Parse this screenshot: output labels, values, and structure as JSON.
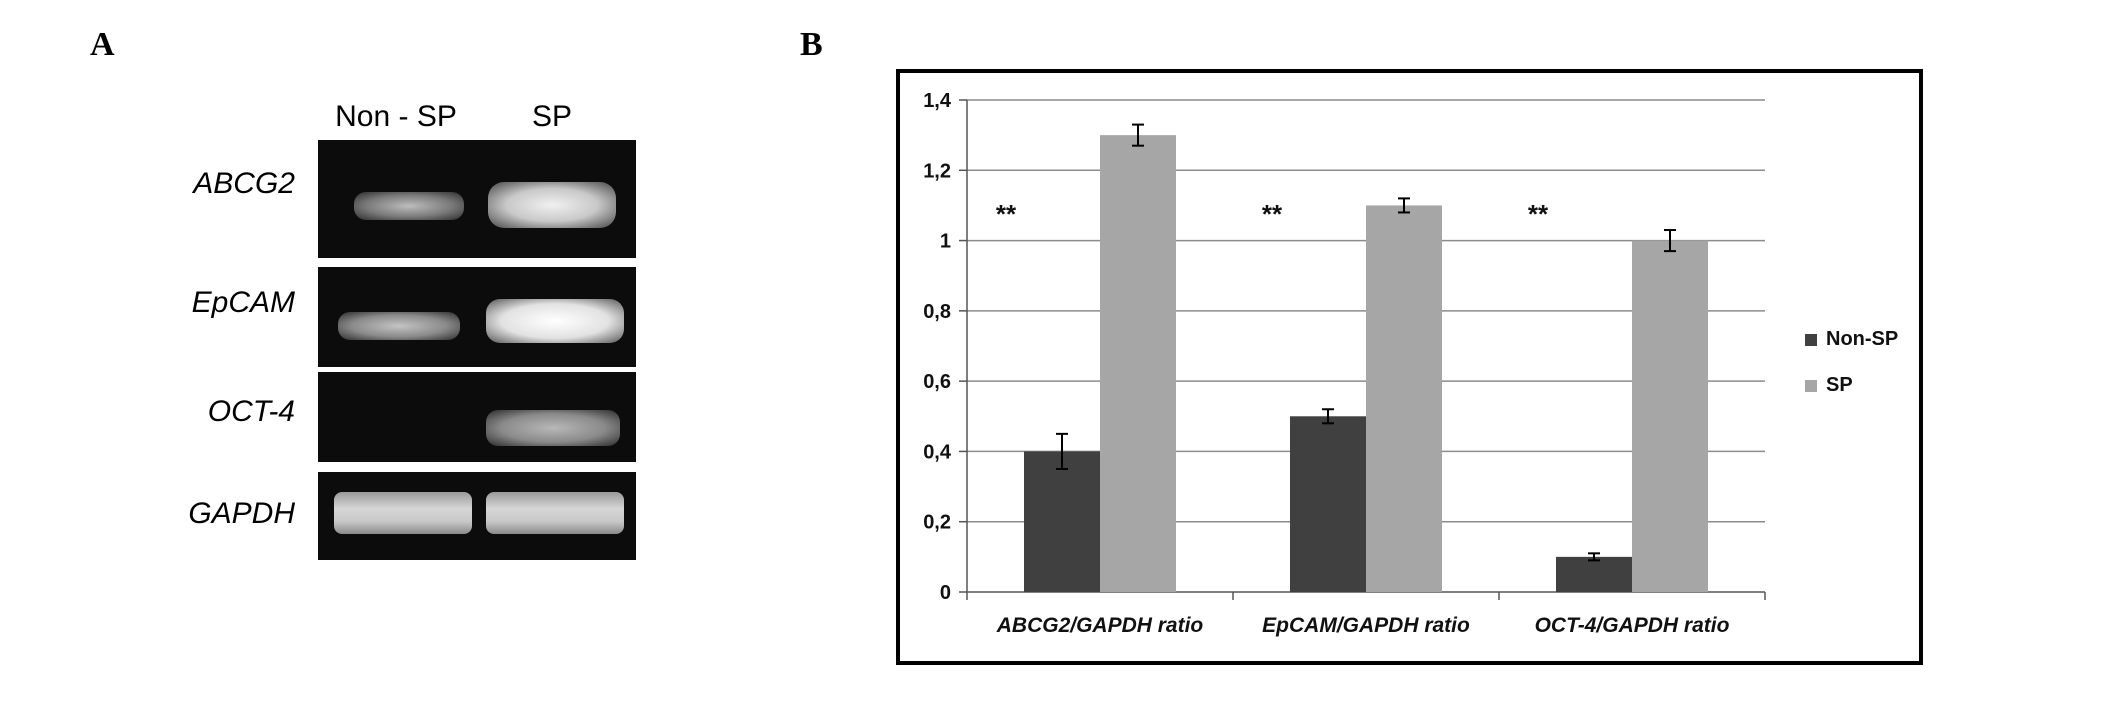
{
  "panels": {
    "a_label": "A",
    "b_label": "B"
  },
  "gel": {
    "lanes": [
      "Non - SP",
      "SP"
    ],
    "genes": [
      {
        "name": "ABCG2",
        "nonsp_intensity": 0.55,
        "sp_intensity": 0.85
      },
      {
        "name": "EpCAM",
        "nonsp_intensity": 0.6,
        "sp_intensity": 0.95
      },
      {
        "name": "OCT-4",
        "nonsp_intensity": 0.0,
        "sp_intensity": 0.6
      },
      {
        "name": "GAPDH",
        "nonsp_intensity": 0.85,
        "sp_intensity": 0.85
      }
    ]
  },
  "chart_data": {
    "type": "bar",
    "categories": [
      "ABCG2/GAPDH ratio",
      "EpCAM/GAPDH ratio",
      "OCT-4/GAPDH ratio"
    ],
    "series": [
      {
        "name": "Non-SP",
        "values": [
          0.4,
          0.5,
          0.1
        ],
        "errors": [
          0.05,
          0.02,
          0.01
        ],
        "color": "#404040"
      },
      {
        "name": "SP",
        "values": [
          1.3,
          1.1,
          1.0
        ],
        "errors": [
          0.03,
          0.02,
          0.03
        ],
        "color": "#a6a6a6"
      }
    ],
    "annotations": [
      "**",
      "**",
      "**"
    ],
    "y_ticks": [
      "0",
      "0,2",
      "0,4",
      "0,6",
      "0,8",
      "1",
      "1,2",
      "1,4"
    ],
    "ylim": [
      0,
      1.4
    ],
    "grid": true,
    "legend": "right",
    "title": "",
    "xlabel": "",
    "ylabel": ""
  }
}
